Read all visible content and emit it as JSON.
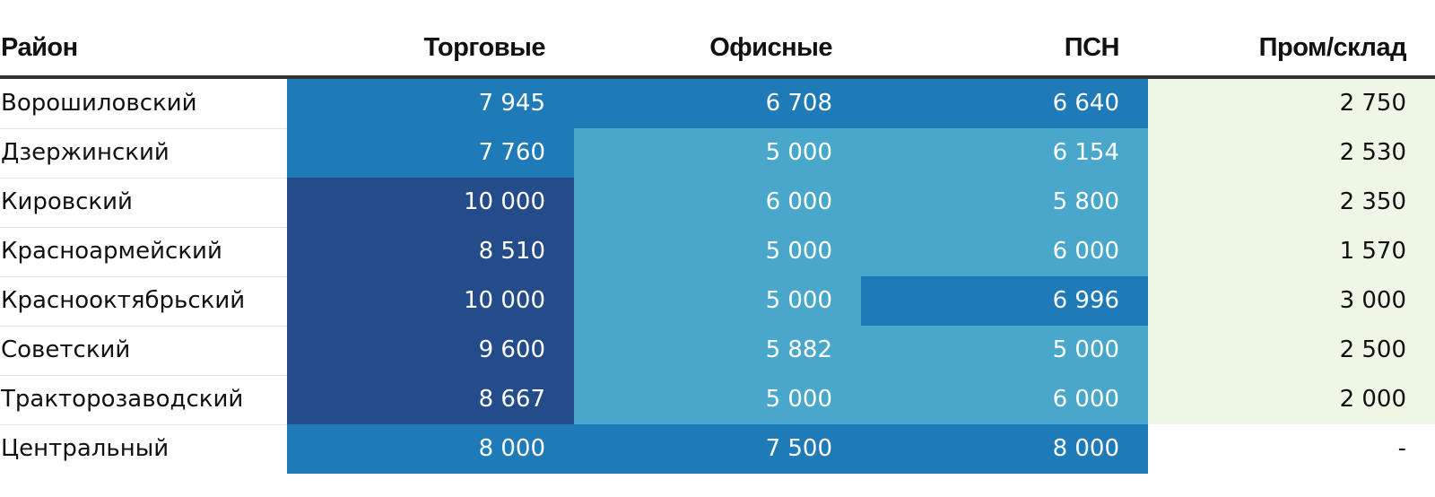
{
  "columns": [
    "Район",
    "Торговые",
    "Офисные",
    "ПСН",
    "Пром/склад"
  ],
  "colors": {
    "dark": "#244b8a",
    "mid": "#1f7ab8",
    "light": "#4aa7cc",
    "pale": "#eef7e6",
    "none": "#ffffff"
  },
  "rows": [
    {
      "district": "Ворошиловский",
      "values": [
        "7 945",
        "6 708",
        "6 640",
        "2 750"
      ],
      "shades": [
        "mid",
        "mid",
        "mid",
        "pale"
      ]
    },
    {
      "district": "Дзержинский",
      "values": [
        "7 760",
        "5 000",
        "6 154",
        "2 530"
      ],
      "shades": [
        "mid",
        "light",
        "light",
        "pale"
      ]
    },
    {
      "district": "Кировский",
      "values": [
        "10 000",
        "6 000",
        "5 800",
        "2 350"
      ],
      "shades": [
        "dark",
        "light",
        "light",
        "pale"
      ]
    },
    {
      "district": "Красноармейский",
      "values": [
        "8 510",
        "5 000",
        "6 000",
        "1 570"
      ],
      "shades": [
        "dark",
        "light",
        "light",
        "pale"
      ]
    },
    {
      "district": "Краснооктябрьский",
      "values": [
        "10 000",
        "5 000",
        "6 996",
        "3 000"
      ],
      "shades": [
        "dark",
        "light",
        "mid",
        "pale"
      ]
    },
    {
      "district": "Советский",
      "values": [
        "9 600",
        "5 882",
        "5 000",
        "2 500"
      ],
      "shades": [
        "dark",
        "light",
        "light",
        "pale"
      ]
    },
    {
      "district": "Тракторозаводский",
      "values": [
        "8 667",
        "5 000",
        "6 000",
        "2 000"
      ],
      "shades": [
        "dark",
        "light",
        "light",
        "pale"
      ]
    },
    {
      "district": "Центральный",
      "values": [
        "8 000",
        "7 500",
        "8 000",
        "-"
      ],
      "shades": [
        "mid",
        "mid",
        "mid",
        "none"
      ]
    }
  ]
}
